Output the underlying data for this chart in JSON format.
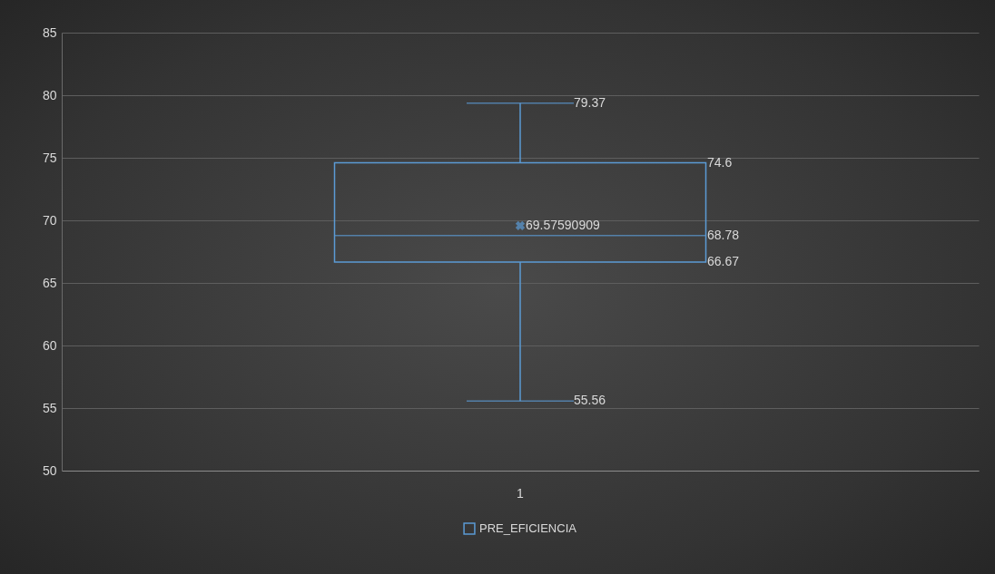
{
  "chart_data": {
    "type": "box",
    "categories": [
      "1"
    ],
    "series": [
      {
        "name": "PRE_EFICIENCIA",
        "color": "#5b9bd5",
        "boxes": [
          {
            "low": 55.56,
            "q1": 66.67,
            "median": 68.78,
            "q3": 74.6,
            "high": 79.37,
            "mean": 69.57590909
          }
        ]
      }
    ],
    "ylim": [
      50,
      85
    ],
    "yticks": [
      50,
      55,
      60,
      65,
      70,
      75,
      80,
      85
    ],
    "grid": "y",
    "legend": "bottom",
    "marker": "cross",
    "annotations": [
      "79.37",
      "74.6",
      "69.57590909",
      "68.78",
      "66.67",
      "55.56"
    ]
  }
}
